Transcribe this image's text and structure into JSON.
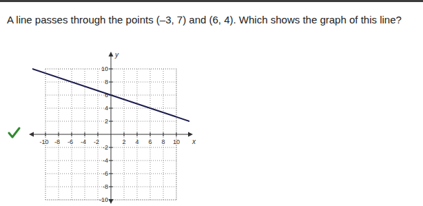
{
  "chart_data": {
    "type": "line",
    "title": "A line passes through the points (–3, 7) and (6, 4). Which shows the graph of this line?",
    "x_label": "x",
    "y_label": "y",
    "x": [
      -12,
      -3,
      6,
      12
    ],
    "values": [
      10,
      7,
      4,
      2
    ],
    "color": "#1c1c4e",
    "xlim": [
      -12,
      12
    ],
    "ylim": [
      -10,
      12
    ],
    "xticks": [
      -10,
      -8,
      -6,
      -4,
      -2,
      2,
      4,
      6,
      8,
      10
    ],
    "yticks": [
      -10,
      -8,
      -6,
      -4,
      -2,
      2,
      4,
      6,
      8,
      10
    ],
    "grid": true
  }
}
